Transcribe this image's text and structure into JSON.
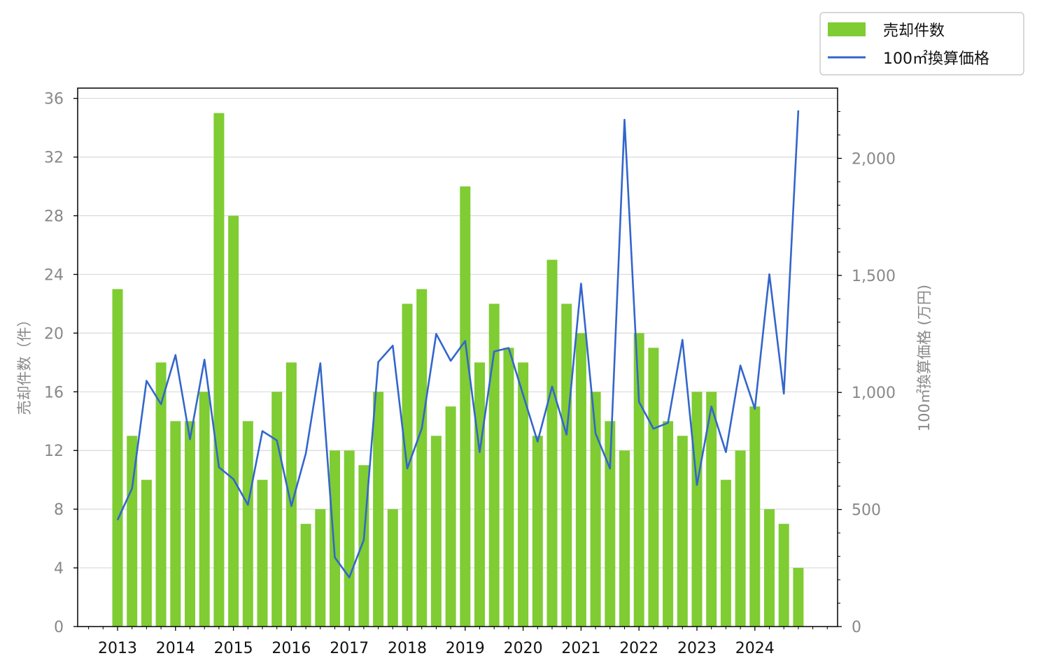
{
  "chart_data": {
    "type": "bar",
    "title": "",
    "x_ticks": [
      "2013",
      "2014",
      "2015",
      "2016",
      "2017",
      "2018",
      "2019",
      "2020",
      "2021",
      "2022",
      "2023",
      "2024"
    ],
    "left_axis": {
      "label": "売却件数（件）",
      "ylim": [
        0,
        36.7
      ],
      "ticks": [
        0,
        4,
        8,
        12,
        16,
        20,
        24,
        28,
        32,
        36
      ]
    },
    "right_axis": {
      "label": "100㎡換算価格 (万円)",
      "ylim": [
        0,
        2300
      ],
      "ticks": [
        0,
        500,
        1000,
        1500,
        2000
      ],
      "tick_labels": [
        "0",
        "500",
        "1,000",
        "1,500",
        "2,000"
      ]
    },
    "grid": "horizontal",
    "legend_position": "top-right outside",
    "colors": {
      "bar": "#7fcc33",
      "line": "#3366cc"
    },
    "series": [
      {
        "name": "売却件数",
        "type": "bar",
        "axis": "left",
        "values": [
          23,
          13,
          10,
          18,
          14,
          14,
          16,
          35,
          28,
          14,
          10,
          16,
          18,
          7,
          8,
          12,
          12,
          11,
          16,
          8,
          22,
          23,
          13,
          15,
          30,
          18,
          22,
          19,
          18,
          13,
          25,
          22,
          20,
          16,
          14,
          12,
          20,
          19,
          14,
          13,
          16,
          16,
          10,
          12,
          15,
          8,
          7,
          4
        ]
      },
      {
        "name": "100㎡換算価格",
        "type": "line",
        "axis": "right",
        "values": [
          455,
          590,
          1050,
          950,
          1160,
          800,
          1140,
          680,
          630,
          520,
          835,
          795,
          515,
          740,
          1125,
          295,
          210,
          370,
          1130,
          1200,
          675,
          845,
          1250,
          1135,
          1220,
          745,
          1175,
          1190,
          990,
          790,
          1025,
          820,
          1465,
          825,
          675,
          2165,
          960,
          845,
          870,
          1225,
          605,
          940,
          745,
          1115,
          930,
          1505,
          995,
          2205
        ]
      }
    ]
  }
}
